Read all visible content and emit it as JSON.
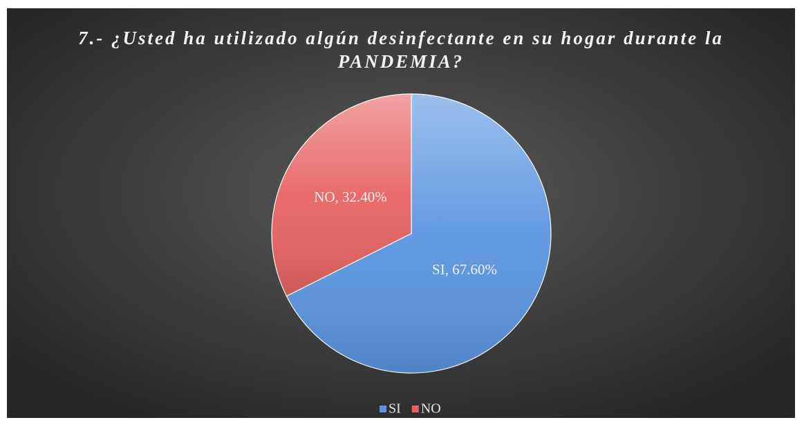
{
  "chart_data": {
    "type": "pie",
    "title": "7.- ¿Usted ha utilizado algún desinfectante en su hogar durante la PANDEMIA?",
    "categories": [
      "SI",
      "NO"
    ],
    "values": [
      67.6,
      32.4
    ],
    "value_labels": [
      "SI, 67.60%",
      "NO, 32.40%"
    ],
    "colors": [
      "#5b95e0",
      "#e86464"
    ],
    "legend": "bottom"
  }
}
